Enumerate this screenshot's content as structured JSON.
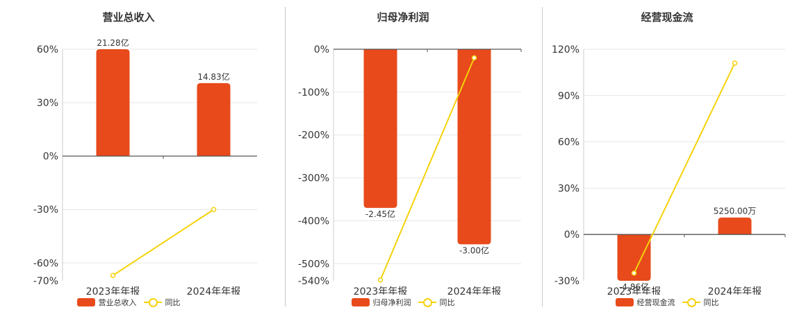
{
  "colors": {
    "bar": "#e84a1b",
    "line": "#f5d20a",
    "axis": "#555555",
    "grid": "#e6e6e6"
  },
  "chart_data": [
    {
      "type": "bar",
      "title": "营业总收入",
      "categories": [
        "2023年年报",
        "2024年年报"
      ],
      "series": [
        {
          "name": "营业总收入",
          "type": "bar",
          "values": [
            60,
            41
          ],
          "labels": [
            "21.28亿",
            "14.83亿"
          ]
        },
        {
          "name": "同比",
          "type": "line",
          "values": [
            -67,
            -30
          ]
        }
      ],
      "ylim": [
        -70,
        60
      ],
      "yticks": [
        60,
        30,
        0,
        -30,
        -60,
        -70
      ],
      "ytick_labels": [
        "60%",
        "30%",
        "0%",
        "-30%",
        "-60%",
        "-70%"
      ],
      "grid": true,
      "legend": "bottom"
    },
    {
      "type": "bar",
      "title": "归母净利润",
      "categories": [
        "2023年年报",
        "2024年年报"
      ],
      "series": [
        {
          "name": "归母净利润",
          "type": "bar",
          "values": [
            -370,
            -455
          ],
          "labels": [
            "-2.45亿",
            "-3.00亿"
          ]
        },
        {
          "name": "同比",
          "type": "line",
          "values": [
            -538,
            -20
          ]
        }
      ],
      "ylim": [
        -540,
        0
      ],
      "yticks": [
        0,
        -100,
        -200,
        -300,
        -400,
        -500,
        -540
      ],
      "ytick_labels": [
        "0%",
        "-100%",
        "-200%",
        "-300%",
        "-400%",
        "-500%",
        "-540%"
      ],
      "grid": true,
      "legend": "bottom"
    },
    {
      "type": "bar",
      "title": "经营现金流",
      "categories": [
        "2023年年报",
        "2024年年报"
      ],
      "series": [
        {
          "name": "经营现金流",
          "type": "bar",
          "values": [
            -30,
            11
          ],
          "labels": [
            "-4.86亿",
            "5250.00万"
          ]
        },
        {
          "name": "同比",
          "type": "line",
          "values": [
            -25,
            111
          ]
        }
      ],
      "ylim": [
        -30,
        120
      ],
      "yticks": [
        120,
        90,
        60,
        30,
        0,
        -30
      ],
      "ytick_labels": [
        "120%",
        "90%",
        "60%",
        "30%",
        "0%",
        "-30%"
      ],
      "grid": true,
      "legend": "bottom"
    }
  ]
}
